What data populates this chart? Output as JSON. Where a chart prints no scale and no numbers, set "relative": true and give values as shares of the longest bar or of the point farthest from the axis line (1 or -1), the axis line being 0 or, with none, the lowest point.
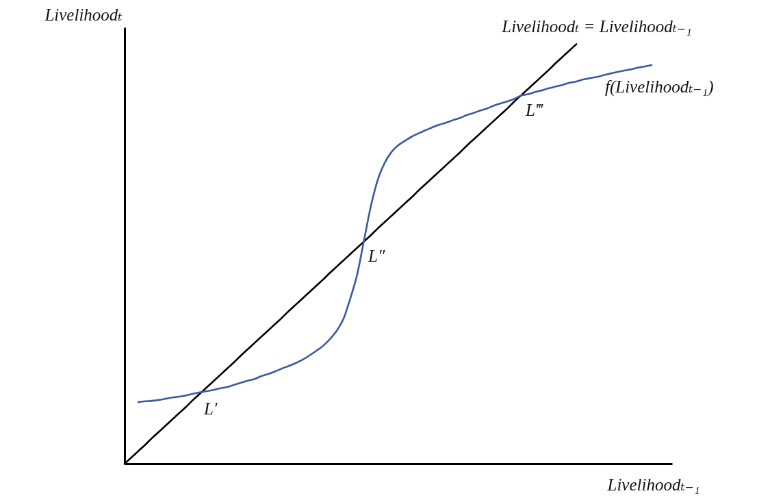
{
  "chart_data": {
    "type": "line",
    "relative": true,
    "xlabel": "Livelihoodₜ₋₁",
    "ylabel": "Livelihoodₜ",
    "categories": [
      null,
      null,
      null,
      null,
      null,
      null,
      null,
      null,
      null,
      null,
      null,
      null,
      null,
      null,
      null,
      null,
      null,
      null,
      null,
      null,
      null,
      null,
      null,
      null,
      null,
      null,
      null,
      null,
      null,
      null,
      null,
      null,
      null,
      null,
      null,
      null,
      null,
      null,
      null,
      null,
      null,
      null,
      null,
      null,
      null,
      null,
      null,
      null,
      null,
      null,
      null,
      null,
      null,
      null,
      null,
      null,
      null,
      null,
      null,
      null,
      null,
      null,
      null,
      null,
      null,
      null,
      null,
      null,
      null,
      null,
      null,
      null,
      null,
      null,
      null,
      null,
      null,
      null,
      null,
      null,
      null
    ],
    "series": [
      {
        "name": "Livelihoodₜ = Livelihoodₜ₋₁",
        "color": "#000000",
        "values": [
          0,
          0.015,
          0.03,
          0.045,
          0.061,
          0.076,
          0.091,
          0.106,
          0.121,
          0.136,
          0.152,
          0.167,
          0.182,
          0.197,
          0.212,
          0.227,
          0.242,
          0.258,
          0.273,
          0.288,
          0.303,
          0.318,
          0.333,
          0.348,
          0.364,
          0.379,
          0.394,
          0.409,
          0.424,
          0.439,
          0.455,
          0.47,
          0.485,
          0.5,
          0.515,
          0.53,
          0.545,
          0.561,
          0.576,
          0.591,
          0.606,
          0.621,
          0.636,
          0.652,
          0.667,
          0.682,
          0.697,
          0.712,
          0.727,
          0.742,
          0.758,
          0.773,
          0.788,
          0.803,
          0.818,
          0.833,
          0.848,
          0.864,
          0.879,
          0.894,
          0.909,
          0.924,
          0.939,
          0.955,
          0.97,
          0.985,
          1,
          null,
          null,
          null,
          null,
          null,
          null,
          null,
          null,
          null,
          null,
          null,
          null,
          null,
          null
        ]
      },
      {
        "name": "f(Livelihoodₜ₋₁)",
        "color": "#3a5a9c",
        "values": [
          null,
          null,
          0.147,
          0.149,
          0.15,
          0.152,
          0.155,
          0.158,
          0.16,
          0.163,
          0.167,
          0.17,
          0.173,
          0.176,
          0.18,
          0.183,
          0.188,
          0.193,
          0.198,
          0.202,
          0.209,
          0.214,
          0.22,
          0.227,
          0.233,
          0.24,
          0.248,
          0.258,
          0.269,
          0.281,
          0.297,
          0.317,
          0.346,
          0.395,
          0.452,
          0.534,
          0.615,
          0.677,
          0.717,
          0.743,
          0.759,
          0.77,
          0.78,
          0.788,
          0.795,
          0.802,
          0.808,
          0.813,
          0.819,
          0.824,
          0.831,
          0.836,
          0.842,
          0.847,
          0.854,
          0.859,
          0.864,
          0.87,
          0.878,
          0.881,
          0.886,
          0.89,
          0.895,
          0.899,
          0.903,
          0.908,
          0.911,
          0.916,
          0.919,
          0.922,
          0.926,
          0.93,
          0.934,
          0.937,
          0.94,
          0.944,
          0.947,
          0.95,
          null,
          null,
          null
        ]
      }
    ],
    "annotations": [
      "L′",
      "L″",
      "L‴"
    ]
  }
}
